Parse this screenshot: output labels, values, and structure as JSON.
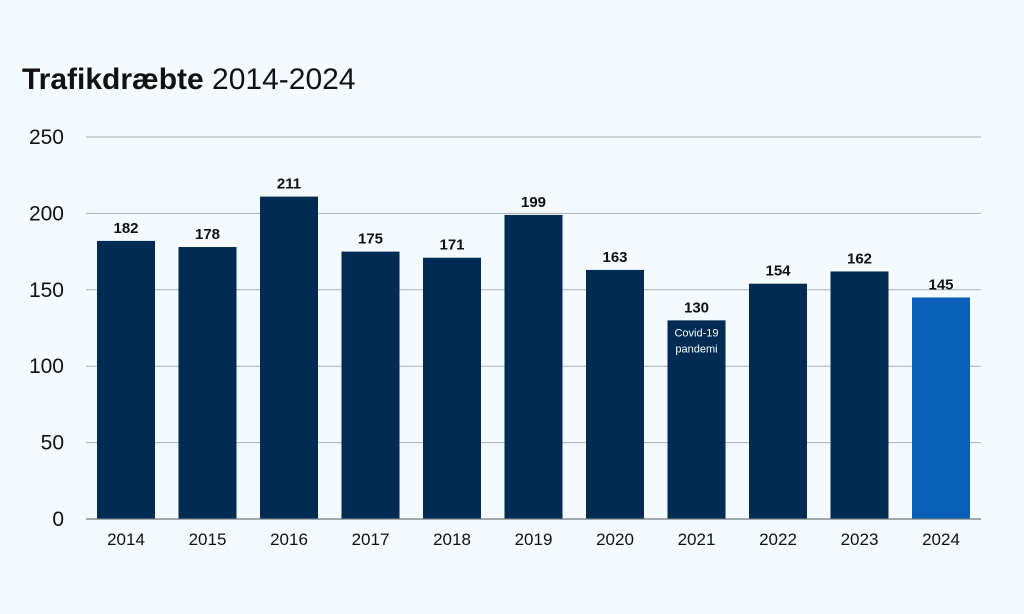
{
  "chart_data": {
    "type": "bar",
    "title_bold": "Trafikdræbte",
    "title_rest": " 2014-2024",
    "categories": [
      "2014",
      "2015",
      "2016",
      "2017",
      "2018",
      "2019",
      "2020",
      "2021",
      "2022",
      "2023",
      "2024"
    ],
    "values": [
      182,
      178,
      211,
      175,
      171,
      199,
      163,
      130,
      154,
      162,
      145
    ],
    "ylim": [
      0,
      250
    ],
    "yticks": [
      "0",
      "50",
      "100",
      "150",
      "200",
      "250"
    ],
    "grid": true,
    "colors": {
      "bar": "#002b52",
      "highlight_bar": "#0a60b6",
      "grid": "#a8b0b8",
      "axis": "#6f7780",
      "background": "#f4fafd"
    },
    "highlight_category": "2024",
    "annotation": {
      "category": "2021",
      "lines": [
        "Covid-19",
        "pandemi"
      ]
    }
  }
}
